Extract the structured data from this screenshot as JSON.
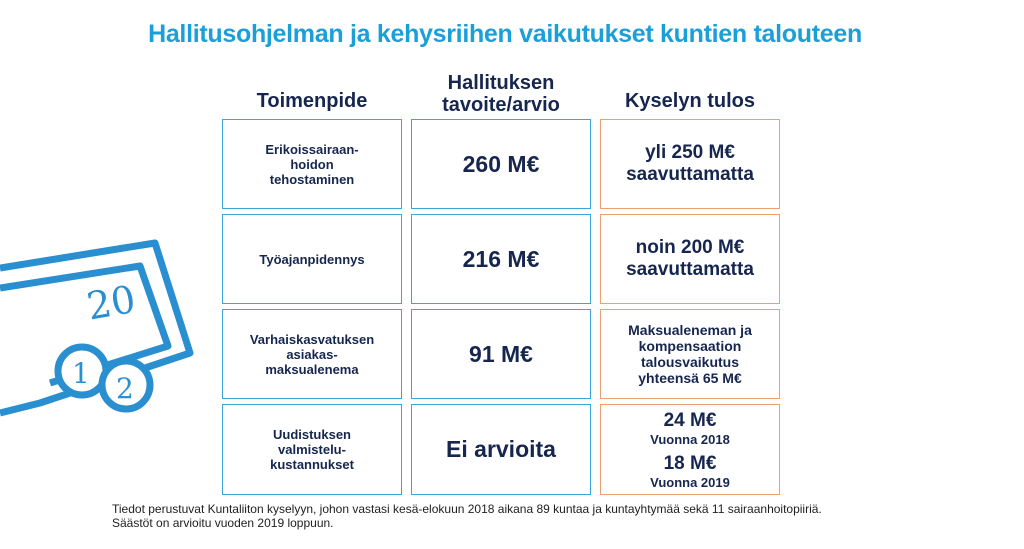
{
  "title": "Hallitusohjelman ja kehysriihen vaikutukset kuntien talouteen",
  "columns": {
    "measure": "Toimenpide",
    "government_l1": "Hallituksen",
    "government_l2": "tavoite/arvio",
    "survey": "Kyselyn tulos"
  },
  "rows": [
    {
      "measure": [
        "Erikoissairaan-",
        "hoidon",
        "tehostaminen"
      ],
      "government": "260 M€",
      "survey": [
        "yli 250 M€",
        "saavuttamatta"
      ]
    },
    {
      "measure": [
        "Työajanpidennys"
      ],
      "government": "216 M€",
      "survey": [
        "noin 200 M€",
        "saavuttamatta"
      ]
    },
    {
      "measure": [
        "Varhaiskasvatuksen",
        "asiakas-",
        "maksualenema"
      ],
      "government": "91 M€",
      "survey": [
        "Maksualeneman ja",
        "kompensaation",
        "talousvaikutus",
        "yhteensä 65 M€"
      ]
    },
    {
      "measure": [
        "Uudistuksen",
        "valmistelu-",
        "kustannukset"
      ],
      "government": "Ei arvioita",
      "survey_values": [
        {
          "amount": "24 M€",
          "year": "Vuonna 2018"
        },
        {
          "amount": "18 M€",
          "year": "Vuonna 2019"
        }
      ]
    }
  ],
  "footer": {
    "line1": "Tiedot perustuvat Kuntaliiton kyselyyn, johon vastasi kesä-elokuun 2018 aikana 89 kuntaa ja kuntayhtymää sekä 11 sairaanhoitopiiriä.",
    "line2": "Säästöt on arvioitu vuoden 2019 loppuun."
  },
  "decoration": {
    "icon": "money-bill-coins-icon",
    "bill_text": "20",
    "coin1_text": "1",
    "coin2_text": "2"
  },
  "colors": {
    "title": "#1a9fd9",
    "text": "#16264f",
    "blue_border": "#3aa6dc",
    "orange_border": "#f0a070",
    "icon": "#2a8fd0"
  }
}
